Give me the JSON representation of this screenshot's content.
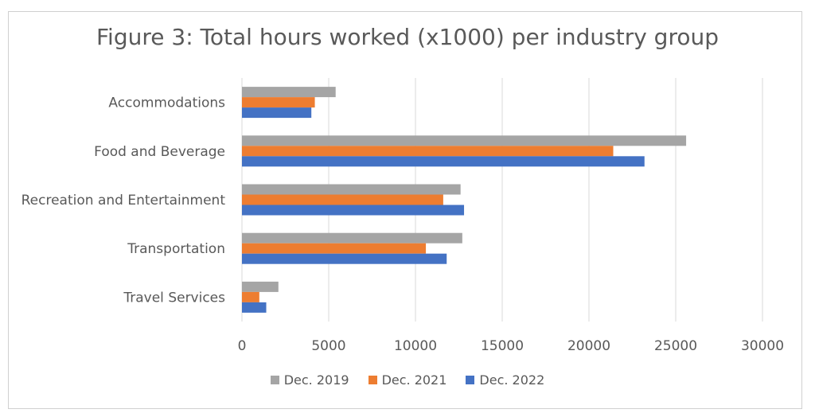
{
  "chart_data": {
    "type": "bar",
    "orientation": "horizontal",
    "title": "Figure 3: Total hours worked (x1000) per industry group",
    "categories": [
      "Accommodations",
      "Food and Beverage",
      "Recreation and Entertainment",
      "Transportation",
      "Travel Services"
    ],
    "series": [
      {
        "name": "Dec. 2019",
        "color": "#a5a5a5",
        "values": [
          5400,
          25600,
          12600,
          12700,
          2100
        ]
      },
      {
        "name": "Dec. 2021",
        "color": "#ed7d31",
        "values": [
          4200,
          21400,
          11600,
          10600,
          1000
        ]
      },
      {
        "name": "Dec. 2022",
        "color": "#4472c4",
        "values": [
          4000,
          23200,
          12800,
          11800,
          1400
        ]
      }
    ],
    "xlim": [
      0,
      30000
    ],
    "xticks": [
      "0",
      "5000",
      "10000",
      "15000",
      "20000",
      "25000",
      "30000"
    ],
    "grid": true,
    "legend_position": "bottom"
  }
}
